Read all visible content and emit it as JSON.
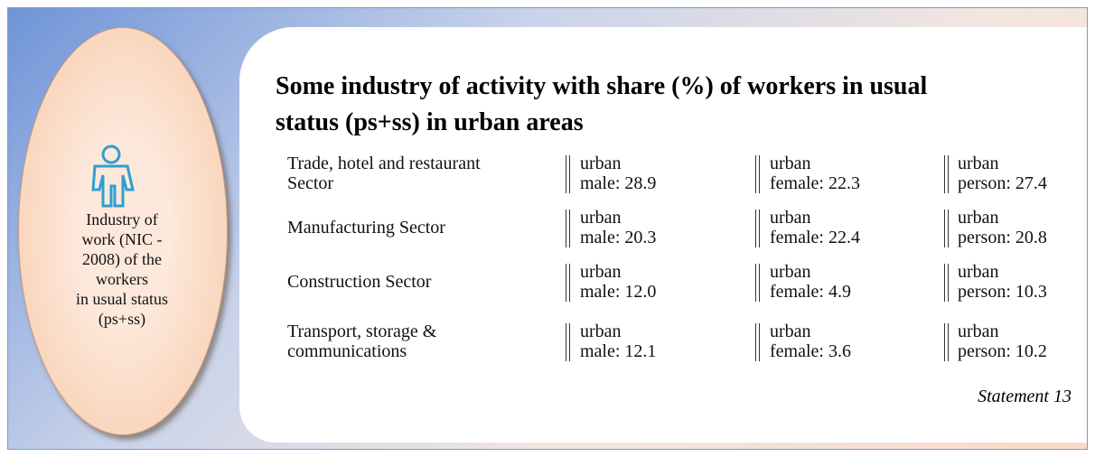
{
  "side_label": {
    "lines": [
      "Industry of",
      "work (NIC -",
      "2008) of the",
      "workers",
      "in usual status",
      "(ps+ss)"
    ]
  },
  "title": {
    "lines": [
      "Some industry of activity with share (%) of workers in usual",
      "status (ps+ss) in urban areas"
    ]
  },
  "table": {
    "rows": [
      {
        "label": [
          "Trade, hotel and restaurant",
          "Sector"
        ],
        "cells": [
          [
            "urban",
            "male: 28.9"
          ],
          [
            "urban",
            "female: 22.3"
          ],
          [
            "urban",
            "person: 27.4"
          ]
        ]
      },
      {
        "label": [
          "Manufacturing Sector"
        ],
        "cells": [
          [
            "urban",
            "male: 20.3"
          ],
          [
            "urban",
            "female: 22.4"
          ],
          [
            "urban",
            "person: 20.8"
          ]
        ]
      },
      {
        "label": [
          "Construction Sector"
        ],
        "cells": [
          [
            "urban",
            "male: 12.0"
          ],
          [
            "urban",
            "female: 4.9"
          ],
          [
            "urban",
            "person: 10.3"
          ]
        ]
      },
      {
        "label": [
          "Transport, storage &",
          "communications"
        ],
        "cells": [
          [
            "urban",
            "male: 12.1"
          ],
          [
            "urban",
            "female: 3.6"
          ],
          [
            "urban",
            "person: 10.2"
          ]
        ]
      }
    ]
  },
  "footnote": "Statement 13"
}
